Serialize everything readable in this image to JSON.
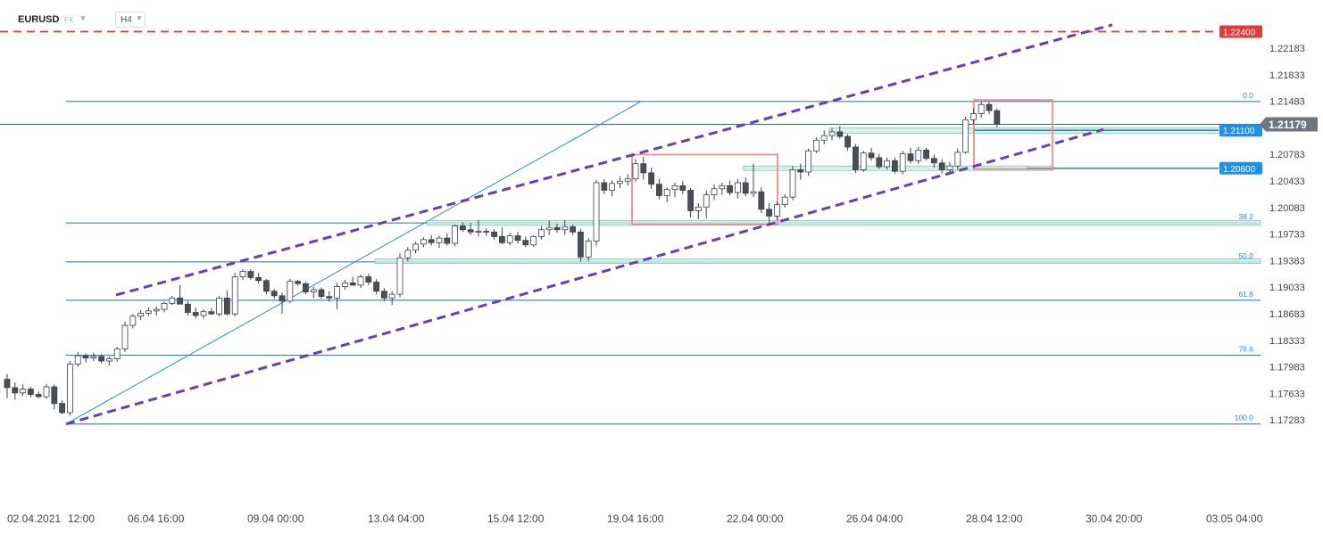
{
  "toolbar": {
    "symbol": "EURUSD",
    "exchange": "FX",
    "timeframe": "H4",
    "caret_icon": "caret-down-icon"
  },
  "colors": {
    "bull_body": "#ffffff",
    "bear_body": "#4a4e57",
    "candle_stroke": "#3c4048",
    "channel": "#6a3db8",
    "fib": "#1f6fae",
    "resistance_line": "#e03a3a",
    "zone_fill": "#cdeee4",
    "zone_stroke": "#7cc9b6",
    "box_stroke": "#f08b8b",
    "price_badge": "#1e90e8",
    "current_badge": "#6f7680",
    "red_badge": "#e03a3a"
  },
  "chart_data": {
    "type": "candlestick",
    "symbol": "EURUSD",
    "timeframe": "H4",
    "y_ticks": [
      1.22183,
      1.21833,
      1.21483,
      1.20783,
      1.20433,
      1.20083,
      1.19733,
      1.19383,
      1.19033,
      1.18683,
      1.18333,
      1.17983,
      1.17633,
      1.17283
    ],
    "ylim": [
      1.1725,
      1.2254
    ],
    "x_ticks": [
      "02.04.2021",
      "12:00",
      "06.04  16:00",
      "09.04  00:00",
      "13.04  04:00",
      "15.04  12:00",
      "19.04  16:00",
      "22.04  00:00",
      "26.04  04:00",
      "28.04  12:00",
      "30.04  20:00",
      "03.05  04:00"
    ],
    "current_price": 1.21179,
    "price_levels": [
      {
        "price": 1.224,
        "label": "1.22400",
        "style": "dashed-red"
      },
      {
        "price": 1.211,
        "label": "1.21100",
        "style": "zone"
      },
      {
        "price": 1.206,
        "label": "1.20600",
        "style": "zone"
      }
    ],
    "fibonacci": [
      {
        "level": "0.0",
        "price": 1.2148
      },
      {
        "level": "38.2",
        "price": 1.1988
      },
      {
        "level": "50.0",
        "price": 1.19365
      },
      {
        "level": "61.8",
        "price": 1.1886
      },
      {
        "level": "78.6",
        "price": 1.18135
      },
      {
        "level": "100.0",
        "price": 1.1723
      }
    ],
    "candles": [
      {
        "o": 1.1782,
        "h": 1.1789,
        "l": 1.1757,
        "c": 1.1771
      },
      {
        "o": 1.1771,
        "h": 1.1778,
        "l": 1.1755,
        "c": 1.1764
      },
      {
        "o": 1.1764,
        "h": 1.1775,
        "l": 1.176,
        "c": 1.1769
      },
      {
        "o": 1.1769,
        "h": 1.1772,
        "l": 1.1758,
        "c": 1.1762
      },
      {
        "o": 1.1762,
        "h": 1.1766,
        "l": 1.1757,
        "c": 1.1759
      },
      {
        "o": 1.1759,
        "h": 1.1776,
        "l": 1.1756,
        "c": 1.1772
      },
      {
        "o": 1.1772,
        "h": 1.1775,
        "l": 1.1742,
        "c": 1.175
      },
      {
        "o": 1.175,
        "h": 1.1754,
        "l": 1.1736,
        "c": 1.1738
      },
      {
        "o": 1.1738,
        "h": 1.1806,
        "l": 1.1734,
        "c": 1.1802
      },
      {
        "o": 1.1802,
        "h": 1.1818,
        "l": 1.1798,
        "c": 1.1813
      },
      {
        "o": 1.1813,
        "h": 1.1816,
        "l": 1.1804,
        "c": 1.181
      },
      {
        "o": 1.181,
        "h": 1.1817,
        "l": 1.1806,
        "c": 1.1812
      },
      {
        "o": 1.1812,
        "h": 1.1815,
        "l": 1.1803,
        "c": 1.1806
      },
      {
        "o": 1.1806,
        "h": 1.1812,
        "l": 1.18,
        "c": 1.1809
      },
      {
        "o": 1.1809,
        "h": 1.1825,
        "l": 1.1805,
        "c": 1.1822
      },
      {
        "o": 1.1822,
        "h": 1.1858,
        "l": 1.1818,
        "c": 1.1853
      },
      {
        "o": 1.1853,
        "h": 1.1868,
        "l": 1.1849,
        "c": 1.1865
      },
      {
        "o": 1.1865,
        "h": 1.1873,
        "l": 1.186,
        "c": 1.1869
      },
      {
        "o": 1.1869,
        "h": 1.1877,
        "l": 1.1865,
        "c": 1.1872
      },
      {
        "o": 1.1872,
        "h": 1.1878,
        "l": 1.1866,
        "c": 1.1874
      },
      {
        "o": 1.1874,
        "h": 1.1884,
        "l": 1.187,
        "c": 1.1882
      },
      {
        "o": 1.1882,
        "h": 1.1892,
        "l": 1.188,
        "c": 1.1889
      },
      {
        "o": 1.1889,
        "h": 1.1906,
        "l": 1.1885,
        "c": 1.1881
      },
      {
        "o": 1.1881,
        "h": 1.1885,
        "l": 1.1866,
        "c": 1.187
      },
      {
        "o": 1.187,
        "h": 1.1877,
        "l": 1.1862,
        "c": 1.1866
      },
      {
        "o": 1.1866,
        "h": 1.1874,
        "l": 1.1862,
        "c": 1.1871
      },
      {
        "o": 1.1871,
        "h": 1.1876,
        "l": 1.1867,
        "c": 1.1868
      },
      {
        "o": 1.1868,
        "h": 1.1892,
        "l": 1.1865,
        "c": 1.1889
      },
      {
        "o": 1.1889,
        "h": 1.1899,
        "l": 1.1866,
        "c": 1.1868
      },
      {
        "o": 1.1868,
        "h": 1.1922,
        "l": 1.1865,
        "c": 1.1917
      },
      {
        "o": 1.1917,
        "h": 1.1927,
        "l": 1.1913,
        "c": 1.1924
      },
      {
        "o": 1.1924,
        "h": 1.1927,
        "l": 1.1913,
        "c": 1.1916
      },
      {
        "o": 1.1916,
        "h": 1.1922,
        "l": 1.1908,
        "c": 1.1912
      },
      {
        "o": 1.1912,
        "h": 1.1914,
        "l": 1.1894,
        "c": 1.1898
      },
      {
        "o": 1.1898,
        "h": 1.1901,
        "l": 1.1888,
        "c": 1.1892
      },
      {
        "o": 1.1892,
        "h": 1.1896,
        "l": 1.1868,
        "c": 1.1885
      },
      {
        "o": 1.1885,
        "h": 1.1914,
        "l": 1.1882,
        "c": 1.1911
      },
      {
        "o": 1.1911,
        "h": 1.1913,
        "l": 1.1905,
        "c": 1.1908
      },
      {
        "o": 1.1908,
        "h": 1.191,
        "l": 1.1894,
        "c": 1.1897
      },
      {
        "o": 1.1897,
        "h": 1.1904,
        "l": 1.1889,
        "c": 1.19
      },
      {
        "o": 1.19,
        "h": 1.1903,
        "l": 1.1888,
        "c": 1.1891
      },
      {
        "o": 1.1891,
        "h": 1.1898,
        "l": 1.1884,
        "c": 1.1889
      },
      {
        "o": 1.1889,
        "h": 1.1909,
        "l": 1.1874,
        "c": 1.1904
      },
      {
        "o": 1.1904,
        "h": 1.1913,
        "l": 1.19,
        "c": 1.1909
      },
      {
        "o": 1.1909,
        "h": 1.1917,
        "l": 1.1905,
        "c": 1.1906
      },
      {
        "o": 1.1906,
        "h": 1.192,
        "l": 1.1902,
        "c": 1.1917
      },
      {
        "o": 1.1917,
        "h": 1.1921,
        "l": 1.1906,
        "c": 1.191
      },
      {
        "o": 1.191,
        "h": 1.1914,
        "l": 1.1894,
        "c": 1.1898
      },
      {
        "o": 1.1898,
        "h": 1.1902,
        "l": 1.1885,
        "c": 1.1889
      },
      {
        "o": 1.1889,
        "h": 1.1898,
        "l": 1.188,
        "c": 1.1894
      },
      {
        "o": 1.1894,
        "h": 1.1948,
        "l": 1.189,
        "c": 1.1942
      },
      {
        "o": 1.1942,
        "h": 1.1956,
        "l": 1.1937,
        "c": 1.1952
      },
      {
        "o": 1.1952,
        "h": 1.1963,
        "l": 1.1948,
        "c": 1.196
      },
      {
        "o": 1.196,
        "h": 1.1969,
        "l": 1.1956,
        "c": 1.1966
      },
      {
        "o": 1.1966,
        "h": 1.1972,
        "l": 1.1958,
        "c": 1.1962
      },
      {
        "o": 1.1962,
        "h": 1.1971,
        "l": 1.1955,
        "c": 1.1968
      },
      {
        "o": 1.1968,
        "h": 1.1974,
        "l": 1.1958,
        "c": 1.1961
      },
      {
        "o": 1.1961,
        "h": 1.1986,
        "l": 1.1957,
        "c": 1.1984
      },
      {
        "o": 1.1984,
        "h": 1.1989,
        "l": 1.1976,
        "c": 1.1979
      },
      {
        "o": 1.1979,
        "h": 1.1988,
        "l": 1.1972,
        "c": 1.1976
      },
      {
        "o": 1.1976,
        "h": 1.1992,
        "l": 1.197,
        "c": 1.1977
      },
      {
        "o": 1.1977,
        "h": 1.1981,
        "l": 1.1971,
        "c": 1.1976
      },
      {
        "o": 1.1976,
        "h": 1.198,
        "l": 1.1966,
        "c": 1.197
      },
      {
        "o": 1.197,
        "h": 1.1982,
        "l": 1.196,
        "c": 1.1962
      },
      {
        "o": 1.1962,
        "h": 1.1975,
        "l": 1.1958,
        "c": 1.1971
      },
      {
        "o": 1.1971,
        "h": 1.1976,
        "l": 1.1961,
        "c": 1.1965
      },
      {
        "o": 1.1965,
        "h": 1.197,
        "l": 1.1956,
        "c": 1.1959
      },
      {
        "o": 1.1959,
        "h": 1.1972,
        "l": 1.1956,
        "c": 1.197
      },
      {
        "o": 1.197,
        "h": 1.1984,
        "l": 1.1966,
        "c": 1.1979
      },
      {
        "o": 1.1979,
        "h": 1.1991,
        "l": 1.1972,
        "c": 1.1982
      },
      {
        "o": 1.1982,
        "h": 1.1987,
        "l": 1.1975,
        "c": 1.1979
      },
      {
        "o": 1.1979,
        "h": 1.1992,
        "l": 1.1972,
        "c": 1.1983
      },
      {
        "o": 1.1983,
        "h": 1.1986,
        "l": 1.1972,
        "c": 1.1976
      },
      {
        "o": 1.1976,
        "h": 1.198,
        "l": 1.1937,
        "c": 1.1943
      },
      {
        "o": 1.1943,
        "h": 1.1968,
        "l": 1.1938,
        "c": 1.1964
      },
      {
        "o": 1.1964,
        "h": 1.2045,
        "l": 1.1958,
        "c": 1.2041
      },
      {
        "o": 1.2041,
        "h": 1.2046,
        "l": 1.2026,
        "c": 1.2031
      },
      {
        "o": 1.2031,
        "h": 1.2044,
        "l": 1.2023,
        "c": 1.204
      },
      {
        "o": 1.204,
        "h": 1.2049,
        "l": 1.2034,
        "c": 1.2043
      },
      {
        "o": 1.2043,
        "h": 1.2052,
        "l": 1.2037,
        "c": 1.2046
      },
      {
        "o": 1.2046,
        "h": 1.2072,
        "l": 1.2042,
        "c": 1.2066
      },
      {
        "o": 1.2066,
        "h": 1.2075,
        "l": 1.2045,
        "c": 1.2054
      },
      {
        "o": 1.2054,
        "h": 1.2061,
        "l": 1.2033,
        "c": 1.2039
      },
      {
        "o": 1.2039,
        "h": 1.2046,
        "l": 1.2019,
        "c": 1.2024
      },
      {
        "o": 1.2024,
        "h": 1.2035,
        "l": 1.2015,
        "c": 1.2032
      },
      {
        "o": 1.2032,
        "h": 1.2041,
        "l": 1.2022,
        "c": 1.2037
      },
      {
        "o": 1.2037,
        "h": 1.2043,
        "l": 1.2026,
        "c": 1.2031
      },
      {
        "o": 1.2031,
        "h": 1.2034,
        "l": 1.1995,
        "c": 1.2004
      },
      {
        "o": 1.2004,
        "h": 1.2014,
        "l": 1.1993,
        "c": 1.2009
      },
      {
        "o": 1.2009,
        "h": 1.2031,
        "l": 1.1994,
        "c": 1.2025
      },
      {
        "o": 1.2025,
        "h": 1.2039,
        "l": 1.2018,
        "c": 1.2033
      },
      {
        "o": 1.2033,
        "h": 1.2041,
        "l": 1.2025,
        "c": 1.2037
      },
      {
        "o": 1.2037,
        "h": 1.2044,
        "l": 1.2024,
        "c": 1.2028
      },
      {
        "o": 1.2028,
        "h": 1.2046,
        "l": 1.202,
        "c": 1.2041
      },
      {
        "o": 1.2041,
        "h": 1.2048,
        "l": 1.2023,
        "c": 1.2027
      },
      {
        "o": 1.2027,
        "h": 1.2066,
        "l": 1.2022,
        "c": 1.2029
      },
      {
        "o": 1.2029,
        "h": 1.2035,
        "l": 1.2001,
        "c": 1.2006
      },
      {
        "o": 1.2006,
        "h": 1.2014,
        "l": 1.1987,
        "c": 1.1997
      },
      {
        "o": 1.1997,
        "h": 1.2016,
        "l": 1.1992,
        "c": 1.2012
      },
      {
        "o": 1.2012,
        "h": 1.2026,
        "l": 1.2008,
        "c": 1.2022
      },
      {
        "o": 1.2022,
        "h": 1.2063,
        "l": 1.2018,
        "c": 1.2058
      },
      {
        "o": 1.2058,
        "h": 1.2066,
        "l": 1.2045,
        "c": 1.2055
      },
      {
        "o": 1.2055,
        "h": 1.2086,
        "l": 1.205,
        "c": 1.2083
      },
      {
        "o": 1.2083,
        "h": 1.2101,
        "l": 1.208,
        "c": 1.2097
      },
      {
        "o": 1.2097,
        "h": 1.211,
        "l": 1.2092,
        "c": 1.2103
      },
      {
        "o": 1.2103,
        "h": 1.2113,
        "l": 1.2097,
        "c": 1.2108
      },
      {
        "o": 1.2108,
        "h": 1.2116,
        "l": 1.2099,
        "c": 1.2102
      },
      {
        "o": 1.2102,
        "h": 1.2105,
        "l": 1.2083,
        "c": 1.2088
      },
      {
        "o": 1.2088,
        "h": 1.2092,
        "l": 1.2054,
        "c": 1.2058
      },
      {
        "o": 1.2058,
        "h": 1.2083,
        "l": 1.2055,
        "c": 1.208
      },
      {
        "o": 1.208,
        "h": 1.2087,
        "l": 1.207,
        "c": 1.2074
      },
      {
        "o": 1.2074,
        "h": 1.2079,
        "l": 1.2059,
        "c": 1.2062
      },
      {
        "o": 1.2062,
        "h": 1.2074,
        "l": 1.2058,
        "c": 1.207
      },
      {
        "o": 1.207,
        "h": 1.2074,
        "l": 1.2053,
        "c": 1.2056
      },
      {
        "o": 1.2056,
        "h": 1.2083,
        "l": 1.2052,
        "c": 1.2079
      },
      {
        "o": 1.2079,
        "h": 1.2087,
        "l": 1.2066,
        "c": 1.207
      },
      {
        "o": 1.207,
        "h": 1.2088,
        "l": 1.2066,
        "c": 1.2084
      },
      {
        "o": 1.2084,
        "h": 1.2087,
        "l": 1.207,
        "c": 1.2073
      },
      {
        "o": 1.2073,
        "h": 1.2078,
        "l": 1.2061,
        "c": 1.2067
      },
      {
        "o": 1.2067,
        "h": 1.2072,
        "l": 1.2053,
        "c": 1.2058
      },
      {
        "o": 1.2058,
        "h": 1.2068,
        "l": 1.2054,
        "c": 1.2063
      },
      {
        "o": 1.2063,
        "h": 1.2086,
        "l": 1.2058,
        "c": 1.2081
      },
      {
        "o": 1.2081,
        "h": 1.2128,
        "l": 1.2079,
        "c": 1.2124
      },
      {
        "o": 1.2124,
        "h": 1.2139,
        "l": 1.2118,
        "c": 1.2132
      },
      {
        "o": 1.2132,
        "h": 1.2148,
        "l": 1.2127,
        "c": 1.2144
      },
      {
        "o": 1.2144,
        "h": 1.2148,
        "l": 1.2131,
        "c": 1.2136
      },
      {
        "o": 1.2136,
        "h": 1.2139,
        "l": 1.2114,
        "c": 1.2118
      }
    ]
  }
}
